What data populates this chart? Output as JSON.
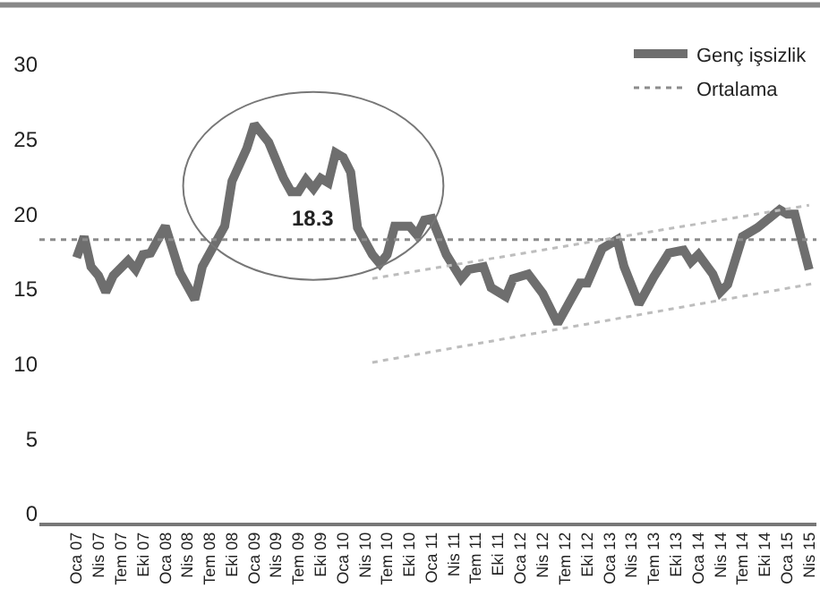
{
  "chart_data": {
    "type": "line",
    "series": [
      {
        "name": "Genç işsizlik",
        "color": "#6e6e6e",
        "line_style": "solid",
        "x": [
          "2007-01",
          "2007-02",
          "2007-03",
          "2007-04",
          "2007-05",
          "2007-06",
          "2007-08",
          "2007-09",
          "2007-10",
          "2007-11",
          "2007-12",
          "2008-01",
          "2008-03",
          "2008-05",
          "2008-06",
          "2008-09",
          "2008-10",
          "2008-12",
          "2009-01",
          "2009-03",
          "2009-05",
          "2009-06",
          "2009-07",
          "2009-08",
          "2009-09",
          "2009-10",
          "2009-11",
          "2009-12",
          "2010-01",
          "2010-02",
          "2010-03",
          "2010-05",
          "2010-06",
          "2010-07",
          "2010-08",
          "2010-10",
          "2010-11",
          "2010-12",
          "2011-01",
          "2011-03",
          "2011-05",
          "2011-06",
          "2011-08",
          "2011-09",
          "2011-11",
          "2011-12",
          "2012-02",
          "2012-04",
          "2012-06",
          "2012-08",
          "2012-09",
          "2012-10",
          "2012-12",
          "2013-02",
          "2013-03",
          "2013-05",
          "2013-07",
          "2013-09",
          "2013-11",
          "2013-12",
          "2014-01",
          "2014-03",
          "2014-04",
          "2014-05",
          "2014-07",
          "2014-09",
          "2014-12",
          "2015-01",
          "2015-02",
          "2015-04"
        ],
        "values": [
          17.1,
          18.5,
          16.5,
          15.9,
          14.8,
          15.9,
          16.9,
          16.3,
          17.3,
          17.4,
          18.3,
          19.2,
          16.1,
          14.3,
          16.5,
          19.2,
          22.2,
          24.4,
          26.0,
          24.8,
          22.4,
          21.5,
          21.5,
          22.3,
          21.7,
          22.4,
          22.1,
          24.1,
          23.8,
          22.8,
          19.1,
          17.3,
          16.7,
          17.3,
          19.2,
          19.2,
          18.6,
          19.6,
          19.7,
          17.3,
          15.7,
          16.3,
          16.5,
          15.1,
          14.5,
          15.7,
          16.0,
          14.7,
          12.7,
          14.5,
          15.4,
          15.4,
          17.7,
          18.3,
          16.5,
          14.0,
          15.8,
          17.4,
          17.6,
          16.8,
          17.3,
          16.0,
          14.8,
          15.3,
          18.5,
          19.1,
          20.3,
          20.0,
          20.0,
          16.3
        ]
      },
      {
        "name": "Ortalama",
        "color": "#8c8c8c",
        "line_style": "dotted",
        "x": [
          "2006-08",
          "2015-05"
        ],
        "values": [
          18.3,
          18.3
        ]
      },
      {
        "color": "#bdbdbd",
        "line_style": "dotted",
        "x": [
          "2010-05",
          "2015-04"
        ],
        "values": [
          15.7,
          20.6
        ]
      },
      {
        "color": "#bdbdbd",
        "line_style": "dotted",
        "x": [
          "2010-05",
          "2015-05"
        ],
        "values": [
          10.1,
          15.4
        ]
      }
    ],
    "annotations": [
      {
        "text": "18.3",
        "x": "2009-09",
        "y": 18.3
      }
    ],
    "xlim": [
      "2006-08",
      "2015-05"
    ],
    "xticks": [
      {
        "value": "2007-01",
        "label": "Oca 07"
      },
      {
        "value": "2007-04",
        "label": "Nis 07"
      },
      {
        "value": "2007-07",
        "label": "Tem 07"
      },
      {
        "value": "2007-10",
        "label": "Eki 07"
      },
      {
        "value": "2008-01",
        "label": "Oca 08"
      },
      {
        "value": "2008-04",
        "label": "Nis 08"
      },
      {
        "value": "2008-07",
        "label": "Tem 08"
      },
      {
        "value": "2008-10",
        "label": "Eki 08"
      },
      {
        "value": "2009-01",
        "label": "Oca 09"
      },
      {
        "value": "2009-04",
        "label": "Nis 09"
      },
      {
        "value": "2009-07",
        "label": "Tem 09"
      },
      {
        "value": "2009-10",
        "label": "Eki 09"
      },
      {
        "value": "2010-01",
        "label": "Oca 10"
      },
      {
        "value": "2010-04",
        "label": "Nis 10"
      },
      {
        "value": "2010-07",
        "label": "Tem 10"
      },
      {
        "value": "2010-10",
        "label": "Eki 10"
      },
      {
        "value": "2011-01",
        "label": "Oca 11"
      },
      {
        "value": "2011-04",
        "label": "Nis 11"
      },
      {
        "value": "2011-07",
        "label": "Tem 11"
      },
      {
        "value": "2011-10",
        "label": "Eki 11"
      },
      {
        "value": "2012-01",
        "label": "Oca 12"
      },
      {
        "value": "2012-04",
        "label": "Nis 12"
      },
      {
        "value": "2012-07",
        "label": "Tem 12"
      },
      {
        "value": "2012-10",
        "label": "Eki 12"
      },
      {
        "value": "2013-01",
        "label": "Oca 13"
      },
      {
        "value": "2013-04",
        "label": "Nis 13"
      },
      {
        "value": "2013-07",
        "label": "Tem 13"
      },
      {
        "value": "2013-10",
        "label": "Eki 13"
      },
      {
        "value": "2014-01",
        "label": "Oca 14"
      },
      {
        "value": "2014-04",
        "label": "Nis 14"
      },
      {
        "value": "2014-07",
        "label": "Tem 14"
      },
      {
        "value": "2014-10",
        "label": "Eki 14"
      },
      {
        "value": "2015-01",
        "label": "Oca 15"
      },
      {
        "value": "2015-04",
        "label": "Nis 15"
      }
    ],
    "ylim": [
      -0.6,
      30
    ],
    "yticks": [
      0,
      5,
      10,
      15,
      20,
      25,
      30
    ],
    "legend": "top right",
    "marker": "none"
  }
}
